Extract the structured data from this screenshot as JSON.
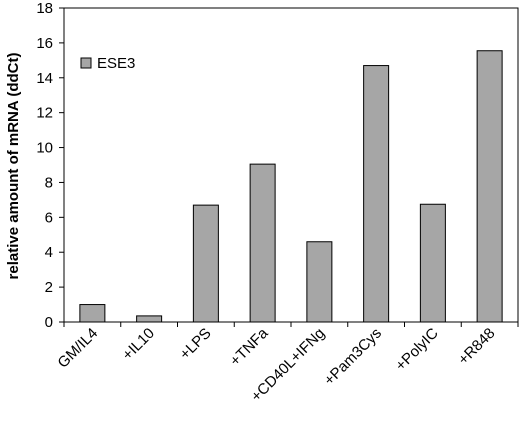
{
  "chart_data": {
    "type": "bar",
    "ylabel": "relative amount of mRNA (ddCt)",
    "xlabel": "",
    "ylim": [
      0,
      18
    ],
    "yticks": [
      0,
      2,
      4,
      6,
      8,
      10,
      12,
      14,
      16,
      18
    ],
    "categories": [
      "GM/IL4",
      "+IL10",
      "+LPS",
      "+TNFa",
      "+CD40L+IFNg",
      "+Pam3Cys",
      "+PolyIC",
      "+R848"
    ],
    "series": [
      {
        "name": "ESE3",
        "values": [
          1.0,
          0.35,
          6.7,
          9.05,
          4.6,
          14.7,
          6.75,
          15.55
        ]
      }
    ],
    "legend": "top-left",
    "grid": false,
    "colors": {
      "bar": "#a6a6a6",
      "bar_stroke": "#000000",
      "axis": "#000000"
    }
  }
}
